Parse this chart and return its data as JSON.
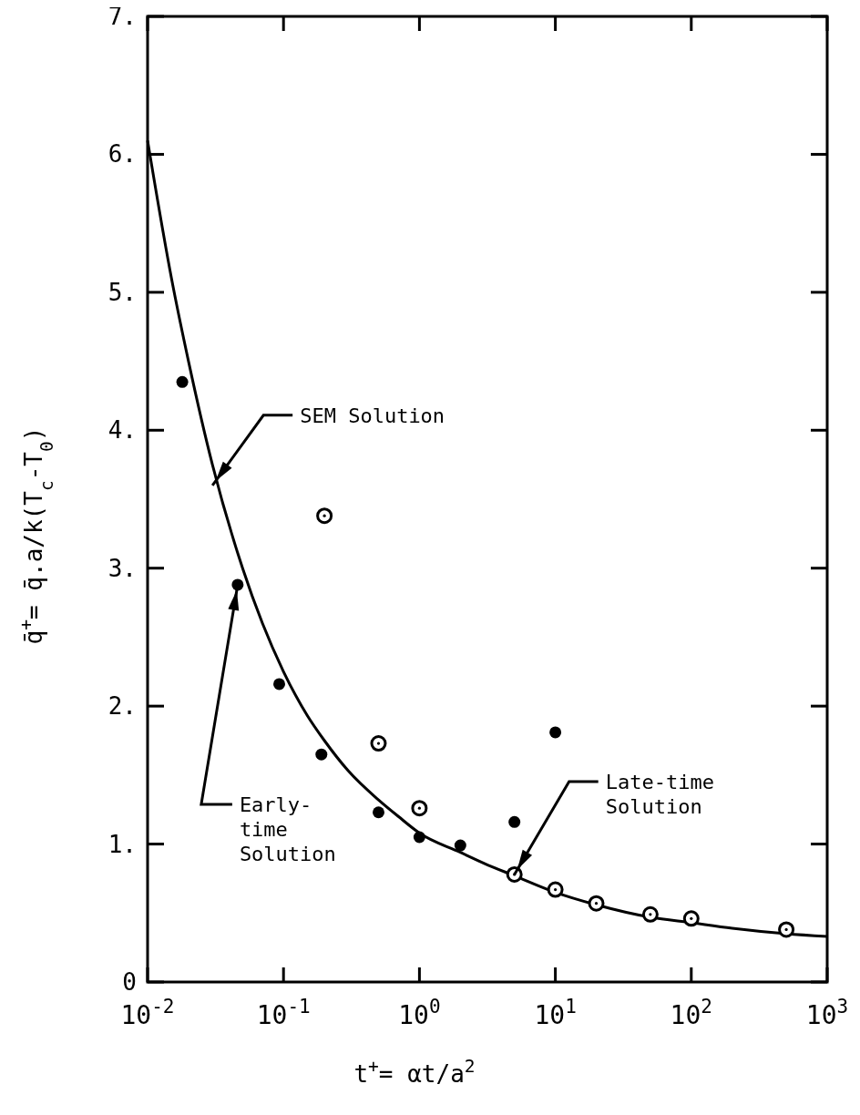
{
  "chart_data": {
    "type": "scatter",
    "xlabel": "t$^{+}$= αt/a$^{2}$",
    "ylabel": "q̄$^{+}$= q̄.a/k(T$_{c}$-T$_{0}$)",
    "log": "x",
    "grid": false,
    "xlim": [
      0.01,
      1000
    ],
    "ylim": [
      0,
      7
    ],
    "xticks": [
      {
        "value": 0.01,
        "label": "10$^{-2}$"
      },
      {
        "value": 0.1,
        "label": "10$^{-1}$"
      },
      {
        "value": 1,
        "label": "10$^{0}$"
      },
      {
        "value": 10,
        "label": "10$^{1}$"
      },
      {
        "value": 100,
        "label": "10$^{2}$"
      },
      {
        "value": 1000,
        "label": "10$^{3}$"
      }
    ],
    "yticks": [
      0,
      {
        "value": 1,
        "label": "1."
      },
      {
        "value": 2,
        "label": "2."
      },
      {
        "value": 3,
        "label": "3."
      },
      {
        "value": 4,
        "label": "4."
      },
      {
        "value": 5,
        "label": "5."
      },
      {
        "value": 6,
        "label": "6."
      },
      {
        "value": 7,
        "label": "7."
      }
    ],
    "series": [
      {
        "type": "line",
        "color": "#000000",
        "marker": "none",
        "line_style": "solid",
        "x": [
          0.01,
          0.015,
          0.02,
          0.03,
          0.05,
          0.07,
          0.1,
          0.15,
          0.2,
          0.3,
          0.5,
          0.7,
          1,
          2,
          3,
          5,
          10,
          20,
          50,
          100,
          200,
          500,
          1000
        ],
        "values": [
          6.1,
          5.1,
          4.5,
          3.75,
          3.0,
          2.6,
          2.25,
          1.93,
          1.75,
          1.53,
          1.32,
          1.2,
          1.08,
          0.94,
          0.86,
          0.77,
          0.65,
          0.56,
          0.47,
          0.43,
          0.39,
          0.35,
          0.33
        ]
      },
      {
        "color": "#000000",
        "marker": "circle",
        "x": [
          0.018,
          0.046,
          0.093,
          0.19,
          0.5,
          1,
          2,
          5,
          10
        ],
        "values": [
          4.35,
          2.88,
          2.16,
          1.65,
          1.23,
          1.05,
          0.99,
          1.16,
          1.81
        ]
      },
      {
        "color": "#ffffff",
        "marker": "circle",
        "x": [
          0.2,
          0.5,
          1
        ],
        "values": [
          3.38,
          1.73,
          1.26
        ]
      },
      {
        "color": "#ffffff",
        "marker": "circle",
        "x": [
          5,
          10,
          20,
          50,
          100,
          500
        ],
        "values": [
          0.78,
          0.67,
          0.57,
          0.49,
          0.46,
          0.38
        ]
      }
    ],
    "annotations": [
      {
        "text": "SEM Solution",
        "x": 0.03,
        "y": 3.6
      },
      {
        "text": "Early-\ntime\nSolution",
        "x": 0.046,
        "y": 2.88
      },
      {
        "text": "Late-time\nSolution",
        "x": 5,
        "y": 0.78
      }
    ]
  }
}
